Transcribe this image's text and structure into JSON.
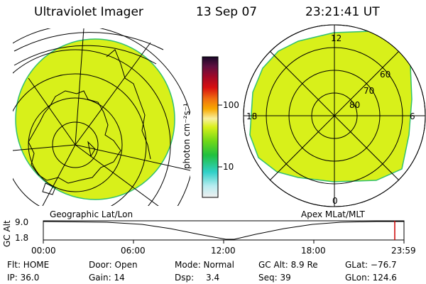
{
  "header": {
    "instrument": "Ultraviolet Imager",
    "date": "13 Sep 07",
    "time": "23:21:41 UT"
  },
  "colorbar": {
    "label": "photon cm⁻²s⁻¹",
    "ticks": [
      "100",
      "10"
    ]
  },
  "left_panel": {
    "caption": "Geographic Lat/Lon",
    "fill_color": "#d8f01a"
  },
  "right_panel": {
    "caption": "Apex MLat/MLT",
    "fill_color": "#d8f01a",
    "mlt_labels": {
      "top": "12",
      "bottom": "0",
      "left": "18",
      "right": "6"
    },
    "lat_labels": [
      "60",
      "70",
      "80"
    ]
  },
  "altitude_plot": {
    "ylabel": "GC Alt",
    "yticks": [
      "9.0",
      "1.8"
    ],
    "xticks": [
      "00:00",
      "06:00",
      "12:00",
      "18:00",
      "23:59"
    ],
    "marker_time": "23:21",
    "marker_color": "#cc0000"
  },
  "status": {
    "flt": "Flt: HOME",
    "door": "Door: Open",
    "mode": "Mode: Normal",
    "gc_alt": "GC Alt: 8.9 Re",
    "glat": "GLat: −76.7",
    "ip": "IP: 36.0",
    "gain": "Gain: 14",
    "dsp_label": "Dsp:",
    "dsp_value": "3.4",
    "seq": "Seq: 39",
    "glon": "GLon: 124.6"
  }
}
